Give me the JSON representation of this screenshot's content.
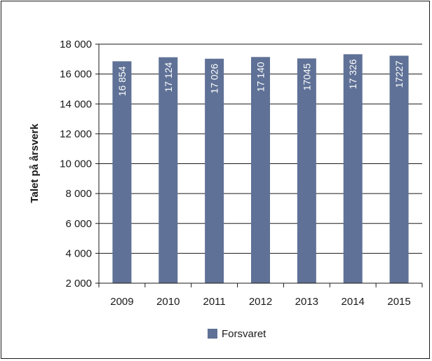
{
  "chart_data": {
    "type": "bar",
    "title": "",
    "xlabel": "",
    "ylabel": "Talet på årsverk",
    "categories": [
      "2009",
      "2010",
      "2011",
      "2012",
      "2013",
      "2014",
      "2015"
    ],
    "series": [
      {
        "name": "Forsvaret",
        "color": "#5f7196",
        "values": [
          16854,
          17124,
          17026,
          17140,
          17045,
          17326,
          17227
        ],
        "labels": [
          "16 854",
          "17 124",
          "17 026",
          "17 140",
          "17045",
          "17 326",
          "17227"
        ]
      }
    ],
    "ylim": [
      2000,
      18000
    ],
    "yticks": [
      2000,
      4000,
      6000,
      8000,
      10000,
      12000,
      14000,
      16000,
      18000
    ],
    "ytick_labels": [
      "2 000",
      "4 000",
      "6 000",
      "8 000",
      "10 000",
      "12 000",
      "14 000",
      "16 000",
      "18 000"
    ],
    "grid": true,
    "legend_position": "bottom-center"
  }
}
